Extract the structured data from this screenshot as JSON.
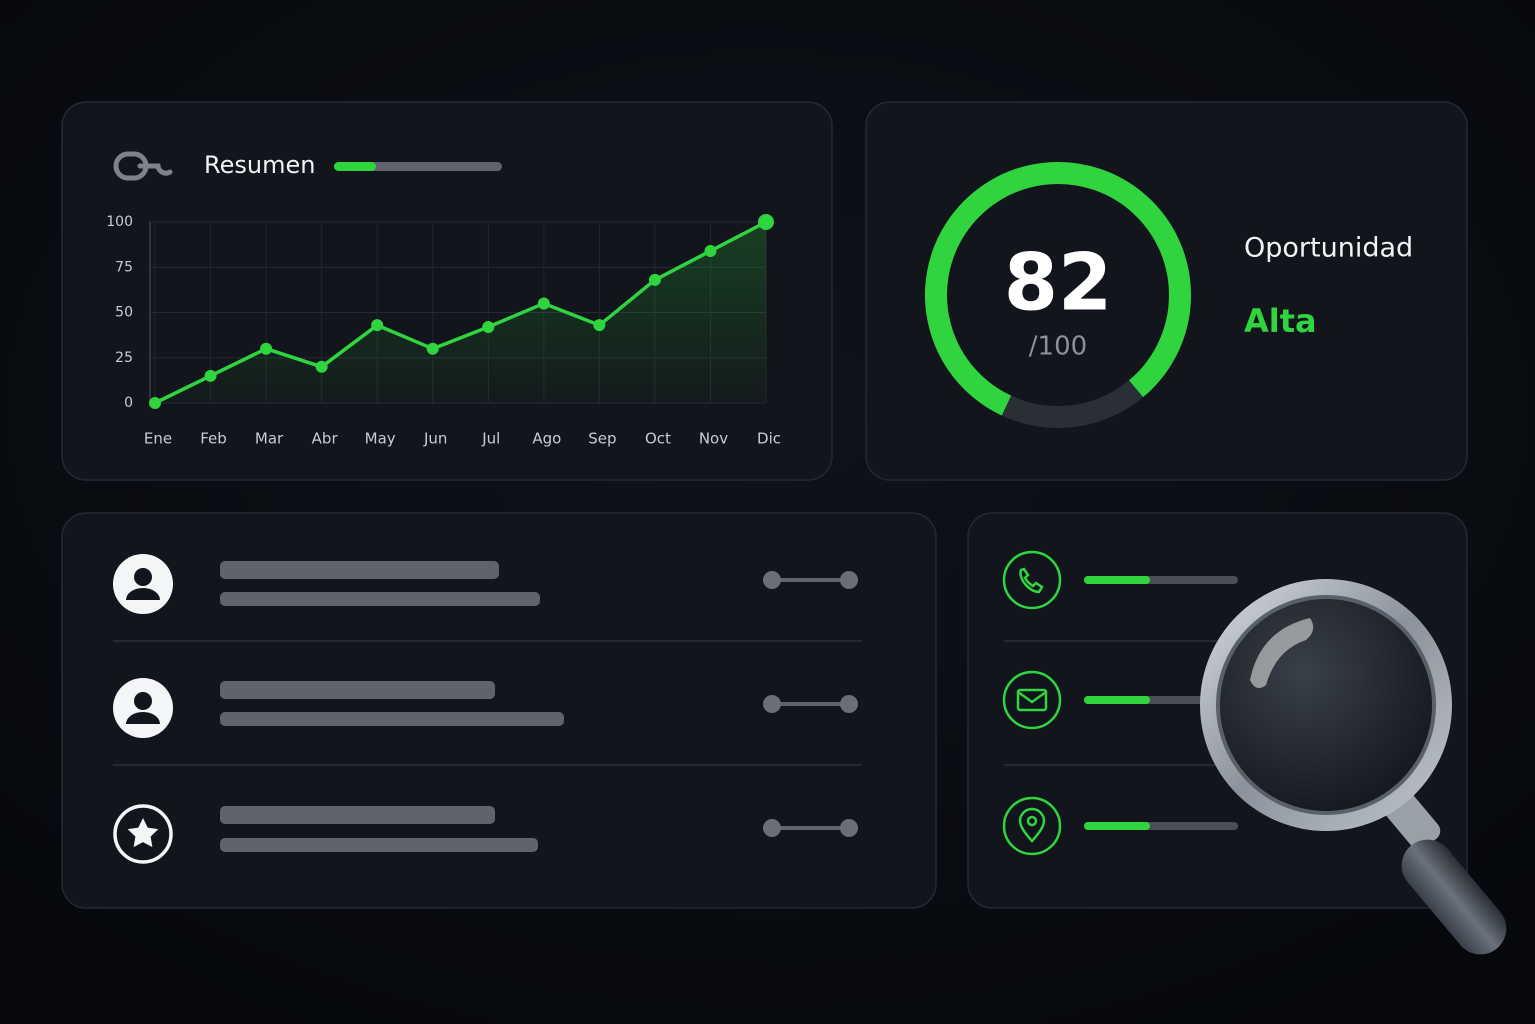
{
  "chart_data": {
    "type": "line",
    "title": "Resumen",
    "categories": [
      "Ene",
      "Feb",
      "Mar",
      "Abr",
      "May",
      "Jun",
      "Jul",
      "Ago",
      "Sep",
      "Oct",
      "Nov",
      "Dic"
    ],
    "series": [
      {
        "name": "Resumen",
        "color": "#2fd43f",
        "values": [
          0,
          15,
          30,
          20,
          43,
          30,
          42,
          55,
          43,
          68,
          84,
          100
        ]
      }
    ],
    "ylim": [
      0,
      100
    ],
    "yticks": [
      0,
      25,
      50,
      75,
      100
    ],
    "grid": true
  },
  "score": {
    "value": 82,
    "max": {
      "value": 100,
      "label": "/100"
    },
    "label": "Oportunidad",
    "level": "Alta",
    "color": "#2fd43f"
  }
}
